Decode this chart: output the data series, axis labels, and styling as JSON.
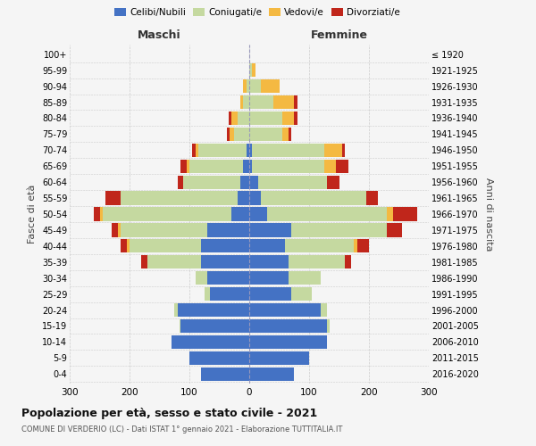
{
  "age_groups": [
    "0-4",
    "5-9",
    "10-14",
    "15-19",
    "20-24",
    "25-29",
    "30-34",
    "35-39",
    "40-44",
    "45-49",
    "50-54",
    "55-59",
    "60-64",
    "65-69",
    "70-74",
    "75-79",
    "80-84",
    "85-89",
    "90-94",
    "95-99",
    "100+"
  ],
  "birth_years": [
    "2016-2020",
    "2011-2015",
    "2006-2010",
    "2001-2005",
    "1996-2000",
    "1991-1995",
    "1986-1990",
    "1981-1985",
    "1976-1980",
    "1971-1975",
    "1966-1970",
    "1961-1965",
    "1956-1960",
    "1951-1955",
    "1946-1950",
    "1941-1945",
    "1936-1940",
    "1931-1935",
    "1926-1930",
    "1921-1925",
    "≤ 1920"
  ],
  "colors": {
    "celibe": "#4472C4",
    "coniugato": "#C5D9A0",
    "vedovo": "#F4B942",
    "divorziato": "#C0261B"
  },
  "males": {
    "celibe": [
      80,
      100,
      130,
      115,
      120,
      65,
      70,
      80,
      80,
      70,
      30,
      20,
      15,
      10,
      5,
      0,
      0,
      0,
      0,
      0,
      0
    ],
    "coniugato": [
      0,
      0,
      0,
      2,
      5,
      10,
      20,
      90,
      120,
      145,
      215,
      195,
      95,
      90,
      80,
      25,
      20,
      10,
      5,
      0,
      0
    ],
    "vedovo": [
      0,
      0,
      0,
      0,
      0,
      0,
      0,
      0,
      5,
      5,
      5,
      0,
      0,
      5,
      5,
      8,
      10,
      5,
      5,
      0,
      0
    ],
    "divorziato": [
      0,
      0,
      0,
      0,
      0,
      0,
      0,
      10,
      10,
      10,
      10,
      25,
      10,
      10,
      5,
      5,
      5,
      0,
      0,
      0,
      0
    ]
  },
  "females": {
    "nubile": [
      75,
      100,
      130,
      130,
      120,
      70,
      65,
      65,
      60,
      70,
      30,
      20,
      15,
      5,
      5,
      0,
      0,
      0,
      0,
      0,
      0
    ],
    "coniugata": [
      0,
      0,
      0,
      5,
      10,
      35,
      55,
      95,
      115,
      160,
      200,
      175,
      115,
      120,
      120,
      55,
      55,
      40,
      20,
      5,
      0
    ],
    "vedova": [
      0,
      0,
      0,
      0,
      0,
      0,
      0,
      0,
      5,
      0,
      10,
      0,
      0,
      20,
      30,
      10,
      20,
      35,
      30,
      5,
      0
    ],
    "divorziata": [
      0,
      0,
      0,
      0,
      0,
      0,
      0,
      10,
      20,
      25,
      40,
      20,
      20,
      20,
      5,
      5,
      5,
      5,
      0,
      0,
      0
    ]
  },
  "title": "Popolazione per età, sesso e stato civile - 2021",
  "subtitle": "COMUNE DI VERDERIO (LC) - Dati ISTAT 1° gennaio 2021 - Elaborazione TUTTITALIA.IT",
  "xlabel_left": "Maschi",
  "xlabel_right": "Femmine",
  "ylabel_left": "Fasce di età",
  "ylabel_right": "Anni di nascita",
  "xlim": 300,
  "bg_color": "#f5f5f5",
  "grid_color": "#cccccc",
  "legend_labels": [
    "Celibi/Nubili",
    "Coniugati/e",
    "Vedovi/e",
    "Divorziati/e"
  ]
}
